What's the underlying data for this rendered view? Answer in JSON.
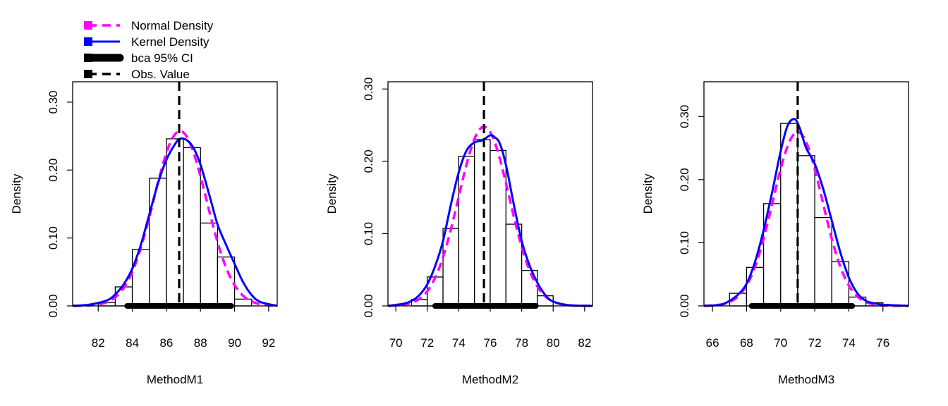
{
  "legend": {
    "position": "top-left",
    "entries": [
      {
        "label": "Normal Density",
        "color": "#ff00ff",
        "style": "dashed"
      },
      {
        "label": "Kernel Density",
        "color": "#0000ff",
        "style": "solid"
      },
      {
        "label": "bca 95% CI",
        "color": "#000000",
        "style": "thick"
      },
      {
        "label": "Obs. Value",
        "color": "#000000",
        "style": "dashed"
      }
    ]
  },
  "chart_data": [
    {
      "type": "bar",
      "xlabel": "MethodM1",
      "ylabel": "Density",
      "xlim": [
        80.5,
        92.5
      ],
      "ylim": [
        0,
        0.33
      ],
      "xticks": [
        82,
        84,
        86,
        88,
        90,
        92
      ],
      "yticks": [
        0.0,
        0.1,
        0.2,
        0.3
      ],
      "ytick_labels": [
        "0.00",
        "0.10",
        "0.20",
        "0.30"
      ],
      "bin_edges": [
        82,
        83,
        84,
        85,
        86,
        87,
        88,
        89,
        90,
        91
      ],
      "values": [
        0.005,
        0.028,
        0.083,
        0.188,
        0.246,
        0.233,
        0.122,
        0.072,
        0.01
      ],
      "normal": {
        "mean": 86.8,
        "sd": 1.55
      },
      "kernel_x": [
        80.5,
        81.5,
        82.5,
        83.0,
        83.5,
        84.0,
        84.5,
        85.0,
        85.5,
        86.0,
        86.5,
        86.8,
        87.2,
        87.6,
        88.0,
        88.5,
        89.0,
        89.5,
        90.0,
        90.5,
        91.0,
        91.5,
        92.5
      ],
      "kernel_y": [
        0.0,
        0.002,
        0.008,
        0.017,
        0.032,
        0.055,
        0.09,
        0.135,
        0.18,
        0.215,
        0.238,
        0.246,
        0.244,
        0.232,
        0.208,
        0.165,
        0.12,
        0.09,
        0.062,
        0.035,
        0.016,
        0.006,
        0.0
      ],
      "ci": [
        83.7,
        89.8
      ],
      "observed": 86.75
    },
    {
      "type": "bar",
      "xlabel": "MethodM2",
      "ylabel": "Density",
      "xlim": [
        69.5,
        82.5
      ],
      "ylim": [
        0,
        0.31
      ],
      "xticks": [
        70,
        72,
        74,
        76,
        78,
        80,
        82
      ],
      "yticks": [
        0.0,
        0.1,
        0.2,
        0.3
      ],
      "ytick_labels": [
        "0.00",
        "0.10",
        "0.20",
        "0.30"
      ],
      "bin_edges": [
        71,
        72,
        73,
        74,
        75,
        76,
        77,
        78,
        79,
        80
      ],
      "values": [
        0.009,
        0.04,
        0.107,
        0.207,
        0.23,
        0.215,
        0.113,
        0.049,
        0.014
      ],
      "normal": {
        "mean": 75.6,
        "sd": 1.61
      },
      "kernel_x": [
        69.5,
        70.5,
        71.0,
        71.5,
        72.0,
        72.5,
        73.0,
        73.5,
        74.0,
        74.5,
        75.0,
        75.5,
        76.0,
        76.3,
        76.6,
        77.0,
        77.5,
        78.0,
        78.5,
        79.0,
        79.5,
        80.0,
        81.0,
        82.5
      ],
      "kernel_y": [
        0.0,
        0.003,
        0.007,
        0.015,
        0.03,
        0.055,
        0.09,
        0.14,
        0.185,
        0.215,
        0.226,
        0.229,
        0.236,
        0.233,
        0.225,
        0.195,
        0.14,
        0.09,
        0.056,
        0.032,
        0.015,
        0.006,
        0.001,
        0.0
      ],
      "ci": [
        72.5,
        78.9
      ],
      "observed": 75.6
    },
    {
      "type": "bar",
      "xlabel": "MethodM3",
      "ylabel": "Density",
      "xlim": [
        65.5,
        77.5
      ],
      "ylim": [
        0,
        0.355
      ],
      "xticks": [
        66,
        68,
        70,
        72,
        74,
        76
      ],
      "yticks": [
        0.0,
        0.1,
        0.2,
        0.3
      ],
      "ytick_labels": [
        "0.00",
        "0.10",
        "0.20",
        "0.30"
      ],
      "bin_edges": [
        67,
        68,
        69,
        70,
        71,
        72,
        73,
        74,
        75,
        76
      ],
      "values": [
        0.02,
        0.061,
        0.162,
        0.289,
        0.238,
        0.14,
        0.07,
        0.014,
        0.005
      ],
      "normal": {
        "mean": 71.0,
        "sd": 1.45
      },
      "kernel_x": [
        65.5,
        66.5,
        67.0,
        67.5,
        68.0,
        68.5,
        69.0,
        69.5,
        70.0,
        70.4,
        70.8,
        71.1,
        71.5,
        72.0,
        72.5,
        73.0,
        73.5,
        74.0,
        74.5,
        75.0,
        75.5,
        76.0,
        77.5
      ],
      "kernel_y": [
        0.0,
        0.002,
        0.008,
        0.018,
        0.035,
        0.07,
        0.12,
        0.18,
        0.245,
        0.285,
        0.296,
        0.283,
        0.25,
        0.225,
        0.185,
        0.135,
        0.085,
        0.045,
        0.02,
        0.008,
        0.004,
        0.002,
        0.0
      ],
      "ci": [
        68.3,
        74.2
      ],
      "observed": 71.0
    }
  ]
}
